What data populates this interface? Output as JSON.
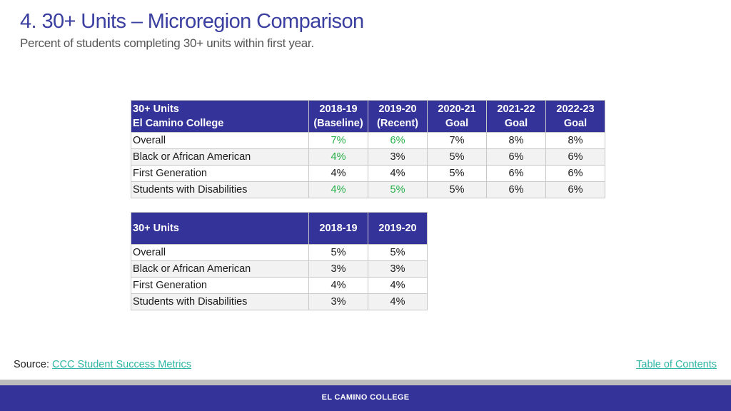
{
  "header": {
    "title": "4. 30+ Units – Microregion Comparison",
    "subtitle": "Percent of students completing 30+ units within first year."
  },
  "table1": {
    "header_line1": [
      "30+ Units",
      "2018-19",
      "2019-20",
      "2020-21",
      "2021-22",
      "2022-23"
    ],
    "header_line2": [
      "El Camino College",
      "(Baseline)",
      "(Recent)",
      "Goal",
      "Goal",
      "Goal"
    ],
    "rows": [
      {
        "label": "Overall",
        "values": [
          "7%",
          "6%",
          "7%",
          "8%",
          "8%"
        ]
      },
      {
        "label": "Black or African American",
        "values": [
          "4%",
          "3%",
          "5%",
          "6%",
          "6%"
        ]
      },
      {
        "label": "First Generation",
        "values": [
          "4%",
          "4%",
          "5%",
          "6%",
          "6%"
        ]
      },
      {
        "label": "Students with Disabilities",
        "values": [
          "4%",
          "5%",
          "5%",
          "6%",
          "6%"
        ]
      }
    ],
    "highlight_color": "#27b04a"
  },
  "table2": {
    "headers": [
      "30+ Units",
      "2018-19",
      "2019-20"
    ],
    "rows": [
      {
        "label": "Overall",
        "values": [
          "5%",
          "5%"
        ]
      },
      {
        "label": "Black or African American",
        "values": [
          "3%",
          "3%"
        ]
      },
      {
        "label": "First Generation",
        "values": [
          "4%",
          "4%"
        ]
      },
      {
        "label": "Students with Disabilities",
        "values": [
          "3%",
          "4%"
        ]
      }
    ]
  },
  "footer": {
    "source_label": "Source:",
    "source_link": "CCC Student Success Metrics",
    "toc_link": "Table of Contents",
    "brand": "EL CAMINO COLLEGE"
  },
  "colors": {
    "accent": "#33339a",
    "link": "#2fb5a4"
  }
}
